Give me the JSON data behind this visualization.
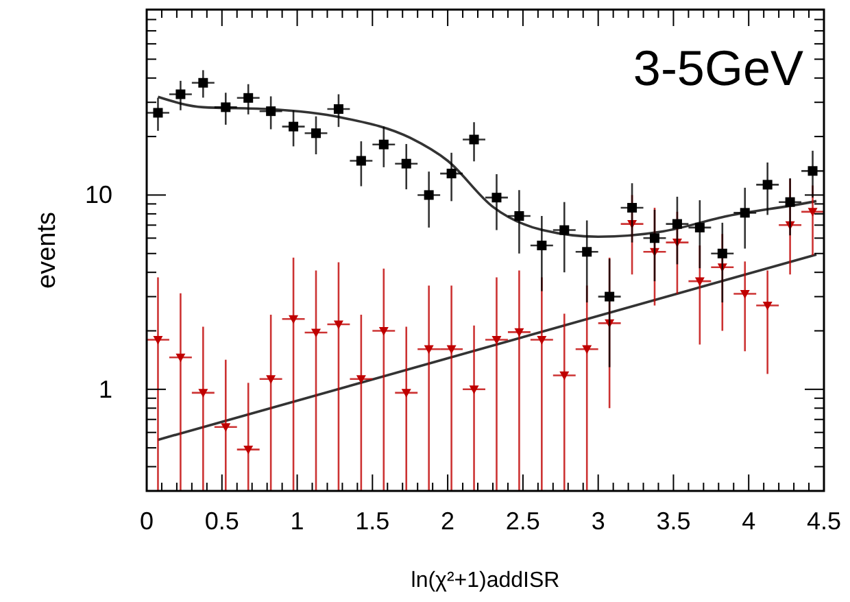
{
  "chart_data": {
    "type": "scatter",
    "xlabel": "ln(χ²+1)addISR",
    "ylabel": "events",
    "annotations": [
      "3-5GeV"
    ],
    "log": "y",
    "grid": false,
    "xlim": [
      0,
      4.5
    ],
    "ylim": [
      0.3,
      90
    ],
    "xticks": [
      0,
      {
        "value": 0.1,
        "label": null
      },
      {
        "value": 0.2,
        "label": null
      },
      {
        "value": 0.3,
        "label": null
      },
      {
        "value": 0.4,
        "label": null
      },
      0.5,
      {
        "value": 0.6,
        "label": null
      },
      {
        "value": 0.7,
        "label": null
      },
      {
        "value": 0.8,
        "label": null
      },
      {
        "value": 0.9,
        "label": null
      },
      1,
      {
        "value": 1.1,
        "label": null
      },
      {
        "value": 1.2,
        "label": null
      },
      {
        "value": 1.3,
        "label": null
      },
      {
        "value": 1.4,
        "label": null
      },
      1.5,
      {
        "value": 1.6,
        "label": null
      },
      {
        "value": 1.7,
        "label": null
      },
      {
        "value": 1.8,
        "label": null
      },
      {
        "value": 1.9,
        "label": null
      },
      2,
      {
        "value": 2.1,
        "label": null
      },
      {
        "value": 2.2,
        "label": null
      },
      {
        "value": 2.3,
        "label": null
      },
      {
        "value": 2.4,
        "label": null
      },
      2.5,
      {
        "value": 2.6,
        "label": null
      },
      {
        "value": 2.7,
        "label": null
      },
      {
        "value": 2.8,
        "label": null
      },
      {
        "value": 2.9,
        "label": null
      },
      3,
      {
        "value": 3.1,
        "label": null
      },
      {
        "value": 3.2,
        "label": null
      },
      {
        "value": 3.3,
        "label": null
      },
      {
        "value": 3.4,
        "label": null
      },
      3.5,
      {
        "value": 3.6,
        "label": null
      },
      {
        "value": 3.7,
        "label": null
      },
      {
        "value": 3.8,
        "label": null
      },
      {
        "value": 3.9,
        "label": null
      },
      4,
      {
        "value": 4.1,
        "label": null
      },
      {
        "value": 4.2,
        "label": null
      },
      {
        "value": 4.3,
        "label": null
      },
      {
        "value": 4.4,
        "label": null
      },
      4.5
    ],
    "yticks": [
      {
        "value": 0.3,
        "label": null
      },
      {
        "value": 0.4,
        "label": null
      },
      {
        "value": 0.5,
        "label": null
      },
      {
        "value": 0.6,
        "label": null
      },
      {
        "value": 0.7,
        "label": null
      },
      {
        "value": 0.8,
        "label": null
      },
      {
        "value": 0.9,
        "label": null
      },
      1,
      {
        "value": 2,
        "label": null
      },
      {
        "value": 3,
        "label": null
      },
      {
        "value": 4,
        "label": null
      },
      {
        "value": 5,
        "label": null
      },
      {
        "value": 6,
        "label": null
      },
      {
        "value": 7,
        "label": null
      },
      {
        "value": 8,
        "label": null
      },
      {
        "value": 9,
        "label": null
      },
      10,
      {
        "value": 20,
        "label": null
      },
      {
        "value": 30,
        "label": null
      },
      {
        "value": 40,
        "label": null
      },
      {
        "value": 50,
        "label": null
      },
      {
        "value": 60,
        "label": null
      },
      {
        "value": 70,
        "label": null
      },
      {
        "value": 80,
        "label": null
      },
      {
        "value": 90,
        "label": null
      }
    ],
    "series": [
      {
        "marker": "square",
        "color": "#000000",
        "x": [
          0.075,
          0.225,
          0.375,
          0.525,
          0.675,
          0.825,
          0.975,
          1.125,
          1.275,
          1.425,
          1.575,
          1.725,
          1.875,
          2.025,
          2.175,
          2.325,
          2.475,
          2.625,
          2.775,
          2.925,
          3.075,
          3.225,
          3.375,
          3.525,
          3.675,
          3.825,
          3.975,
          4.125,
          4.275,
          4.425
        ],
        "values": [
          26.5,
          33,
          37.8,
          28.3,
          31.6,
          27,
          22.5,
          20.8,
          27.7,
          15,
          18.2,
          14.5,
          10,
          12.9,
          19.3,
          9.7,
          7.8,
          5.5,
          6.6,
          5.1,
          3.0,
          8.6,
          6.0,
          7.1,
          6.8,
          5.0,
          8.1,
          11.3,
          9.2,
          13.3
        ],
        "errors": [
          5.1,
          5.7,
          6.1,
          5.3,
          5.6,
          5.2,
          4.7,
          4.6,
          5.3,
          3.9,
          4.3,
          3.8,
          3.2,
          3.6,
          4.4,
          3.1,
          2.8,
          2.3,
          2.6,
          2.3,
          1.7,
          2.9,
          2.4,
          2.7,
          2.6,
          2.2,
          2.8,
          3.4,
          3.0,
          3.6
        ],
        "xerrors": [
          0.075,
          0.075,
          0.075,
          0.075,
          0.075,
          0.075,
          0.075,
          0.075,
          0.075,
          0.075,
          0.075,
          0.075,
          0.075,
          0.075,
          0.075,
          0.075,
          0.075,
          0.075,
          0.075,
          0.075,
          0.075,
          0.075,
          0.075,
          0.075,
          0.075,
          0.075,
          0.075,
          0.075,
          0.075,
          0.075
        ]
      },
      {
        "marker": "triangle",
        "color": "#c00000",
        "x": [
          0.075,
          0.225,
          0.375,
          0.525,
          0.675,
          0.825,
          0.975,
          1.125,
          1.275,
          1.425,
          1.575,
          1.725,
          1.875,
          2.025,
          2.175,
          2.325,
          2.475,
          2.625,
          2.775,
          2.925,
          3.075,
          3.225,
          3.375,
          3.525,
          3.675,
          3.825,
          3.975,
          4.125,
          4.275,
          4.425
        ],
        "values": [
          1.8,
          1.46,
          0.96,
          0.64,
          0.49,
          1.13,
          2.3,
          1.96,
          2.16,
          1.13,
          2.0,
          0.96,
          1.61,
          1.61,
          1.0,
          1.8,
          1.97,
          1.8,
          1.18,
          1.61,
          2.19,
          7.1,
          5.1,
          5.7,
          3.6,
          4.25,
          3.1,
          2.7,
          7.0,
          8.2
        ],
        "errors": [
          [
            0.3,
            3.77
          ],
          [
            0.3,
            3.12
          ],
          [
            0.3,
            2.1
          ],
          [
            0.3,
            1.42
          ],
          [
            0.3,
            1.08
          ],
          [
            0.3,
            2.42
          ],
          [
            0.3,
            4.76
          ],
          [
            0.3,
            4.09
          ],
          [
            0.3,
            4.51
          ],
          [
            0.3,
            2.42
          ],
          [
            0.3,
            4.18
          ],
          [
            0.3,
            2.1
          ],
          [
            0.3,
            3.42
          ],
          [
            0.3,
            3.42
          ],
          [
            0.3,
            2.13
          ],
          [
            0.3,
            3.77
          ],
          [
            0.3,
            4.09
          ],
          [
            0.3,
            3.77
          ],
          [
            0.3,
            2.45
          ],
          [
            0.3,
            3.42
          ],
          [
            0.8,
            4.76
          ],
          [
            3.9,
            10
          ],
          [
            2.7,
            8.6
          ],
          [
            3.1,
            8.2
          ],
          [
            1.7,
            5.5
          ],
          [
            2.0,
            6.3
          ],
          [
            1.57,
            4.55
          ],
          [
            1.2,
            4.09
          ],
          [
            3.9,
            12.1
          ],
          [
            4.9,
            11.2
          ]
        ],
        "xerrors": [
          0.075,
          0.075,
          0.075,
          0.075,
          0.075,
          0.075,
          0.075,
          0.075,
          0.075,
          0.075,
          0.075,
          0.075,
          0.075,
          0.075,
          0.075,
          0.075,
          0.075,
          0.075,
          0.075,
          0.075,
          0.075,
          0.075,
          0.075,
          0.075,
          0.075,
          0.075,
          0.075,
          0.075,
          0.075,
          0.075
        ]
      },
      {
        "type": "line",
        "marker": "none",
        "line_style": "solid",
        "color": "#333333",
        "x": [
          0.075,
          0.375,
          0.8,
          1.3,
          1.75,
          2.0,
          2.3,
          2.63,
          3.0,
          3.43,
          3.86,
          4.35,
          4.45
        ],
        "values": [
          32,
          28.3,
          27.7,
          25,
          19.7,
          15,
          8.7,
          6.6,
          6.1,
          6.5,
          7.8,
          9.0,
          9.3
        ]
      },
      {
        "type": "line",
        "marker": "none",
        "line_style": "solid",
        "color": "#333333",
        "x": [
          0.075,
          4.45
        ],
        "values": [
          0.55,
          4.94
        ]
      }
    ]
  }
}
